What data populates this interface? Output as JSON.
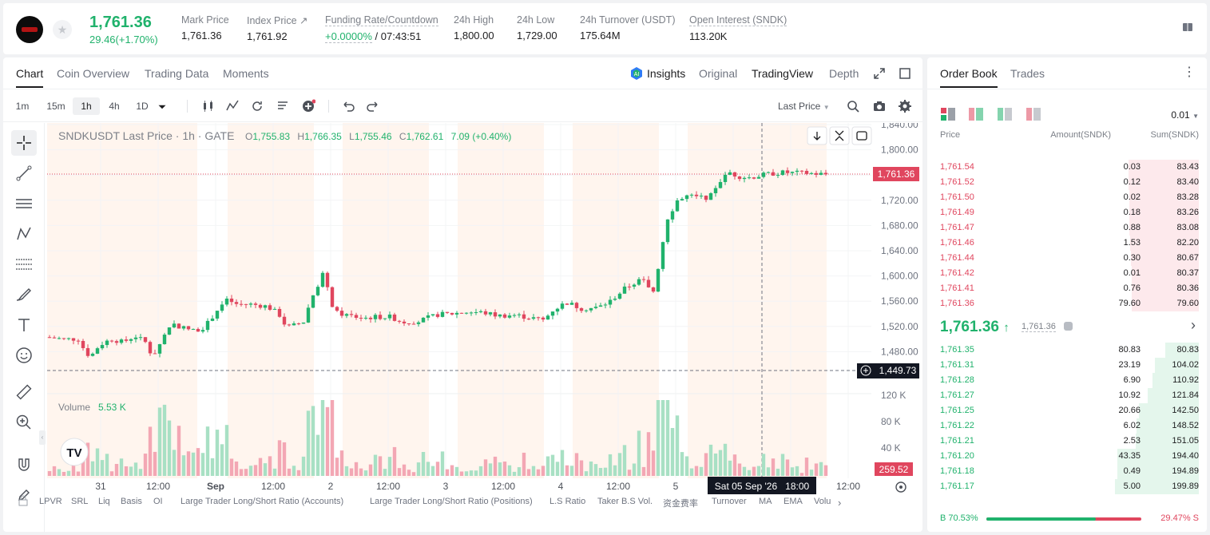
{
  "colors": {
    "up": "#20b26c",
    "down": "#e0465e",
    "text": "#1d1d1f",
    "muted": "#7c8088"
  },
  "header": {
    "price": "1,761.36",
    "change": "29.46(+1.70%)",
    "stats": [
      {
        "label": "Mark Price",
        "value": "1,761.36"
      },
      {
        "label": "Index Price ↗",
        "value": "1,761.92"
      },
      {
        "label": "Funding Rate/Countdown",
        "value_green": "+0.0000%",
        "value": " / 07:43:51"
      },
      {
        "label": "24h High",
        "value": "1,800.00"
      },
      {
        "label": "24h Low",
        "value": "1,729.00"
      },
      {
        "label": "24h Turnover (USDT)",
        "value": "175.64M"
      },
      {
        "label": "Open Interest (SNDK)",
        "value": "113.20K"
      }
    ]
  },
  "chart_tabs": [
    "Chart",
    "Coin Overview",
    "Trading Data",
    "Moments"
  ],
  "view_tabs": [
    "Insights",
    "Original",
    "TradingView",
    "Depth"
  ],
  "timeframes": [
    "1m",
    "15m",
    "1h",
    "4h",
    "1D"
  ],
  "price_type": "Last Price",
  "legend": {
    "symbol": "SNDKUSDT Last Price · 1h · GATE",
    "o": "1,755.83",
    "h": "1,766.35",
    "l": "1,755.46",
    "c": "1,762.61",
    "chg": "7.09 (+0.40%)"
  },
  "volume_legend": {
    "label": "Volume",
    "value": "5.53 K"
  },
  "price_axis": [
    "1,840.00",
    "1,800.00",
    "1,760.00",
    "1,720.00",
    "1,680.00",
    "1,640.00",
    "1,600.00",
    "1,560.00",
    "1,520.00",
    "1,480.00"
  ],
  "volume_axis": [
    "120 K",
    "80 K",
    "40 K"
  ],
  "current_price_tag": "1,761.36",
  "cursor_price_tag": "1,449.73",
  "volume_tag": "259.52",
  "time_axis": [
    "31",
    "12:00",
    "Sep",
    "12:00",
    "2",
    "12:00",
    "3",
    "12:00",
    "4",
    "12:00",
    "5",
    "12:00"
  ],
  "cursor_time": "Sat 05 Sep '26   18:00",
  "indicators": [
    "LPVR",
    "SRL",
    "Liq",
    "Basis",
    "OI",
    "Large Trader Long/Short Ratio (Accounts)",
    "Large Trader Long/Short Ratio (Positions)",
    "L.S Ratio",
    "Taker B.S Vol.",
    "资金费率",
    "Turnover",
    "MA",
    "EMA",
    "Volu"
  ],
  "orderbook": {
    "tabs": [
      "Order Book",
      "Trades"
    ],
    "precision": "0.01",
    "cols": [
      "Price",
      "Amount(SNDK)",
      "Sum(SNDK)"
    ],
    "asks": [
      {
        "price": "1,761.54",
        "amount": "0.03",
        "sum": "83.43"
      },
      {
        "price": "1,761.52",
        "amount": "0.12",
        "sum": "83.40"
      },
      {
        "price": "1,761.50",
        "amount": "0.02",
        "sum": "83.28"
      },
      {
        "price": "1,761.49",
        "amount": "0.18",
        "sum": "83.26"
      },
      {
        "price": "1,761.47",
        "amount": "0.88",
        "sum": "83.08"
      },
      {
        "price": "1,761.46",
        "amount": "1.53",
        "sum": "82.20"
      },
      {
        "price": "1,761.44",
        "amount": "0.30",
        "sum": "80.67"
      },
      {
        "price": "1,761.42",
        "amount": "0.01",
        "sum": "80.37"
      },
      {
        "price": "1,761.41",
        "amount": "0.76",
        "sum": "80.36"
      },
      {
        "price": "1,761.36",
        "amount": "79.60",
        "sum": "79.60"
      }
    ],
    "last": "1,761.36",
    "mark": "1,761.36",
    "bids": [
      {
        "price": "1,761.35",
        "amount": "80.83",
        "sum": "80.83"
      },
      {
        "price": "1,761.31",
        "amount": "23.19",
        "sum": "104.02"
      },
      {
        "price": "1,761.28",
        "amount": "6.90",
        "sum": "110.92"
      },
      {
        "price": "1,761.27",
        "amount": "10.92",
        "sum": "121.84"
      },
      {
        "price": "1,761.25",
        "amount": "20.66",
        "sum": "142.50"
      },
      {
        "price": "1,761.22",
        "amount": "6.02",
        "sum": "148.52"
      },
      {
        "price": "1,761.21",
        "amount": "2.53",
        "sum": "151.05"
      },
      {
        "price": "1,761.20",
        "amount": "43.35",
        "sum": "194.40"
      },
      {
        "price": "1,761.18",
        "amount": "0.49",
        "sum": "194.89"
      },
      {
        "price": "1,761.17",
        "amount": "5.00",
        "sum": "199.89"
      }
    ],
    "buy_ratio": "B 70.53%",
    "sell_ratio": "29.47% S",
    "buy_fraction": 0.7053
  }
}
